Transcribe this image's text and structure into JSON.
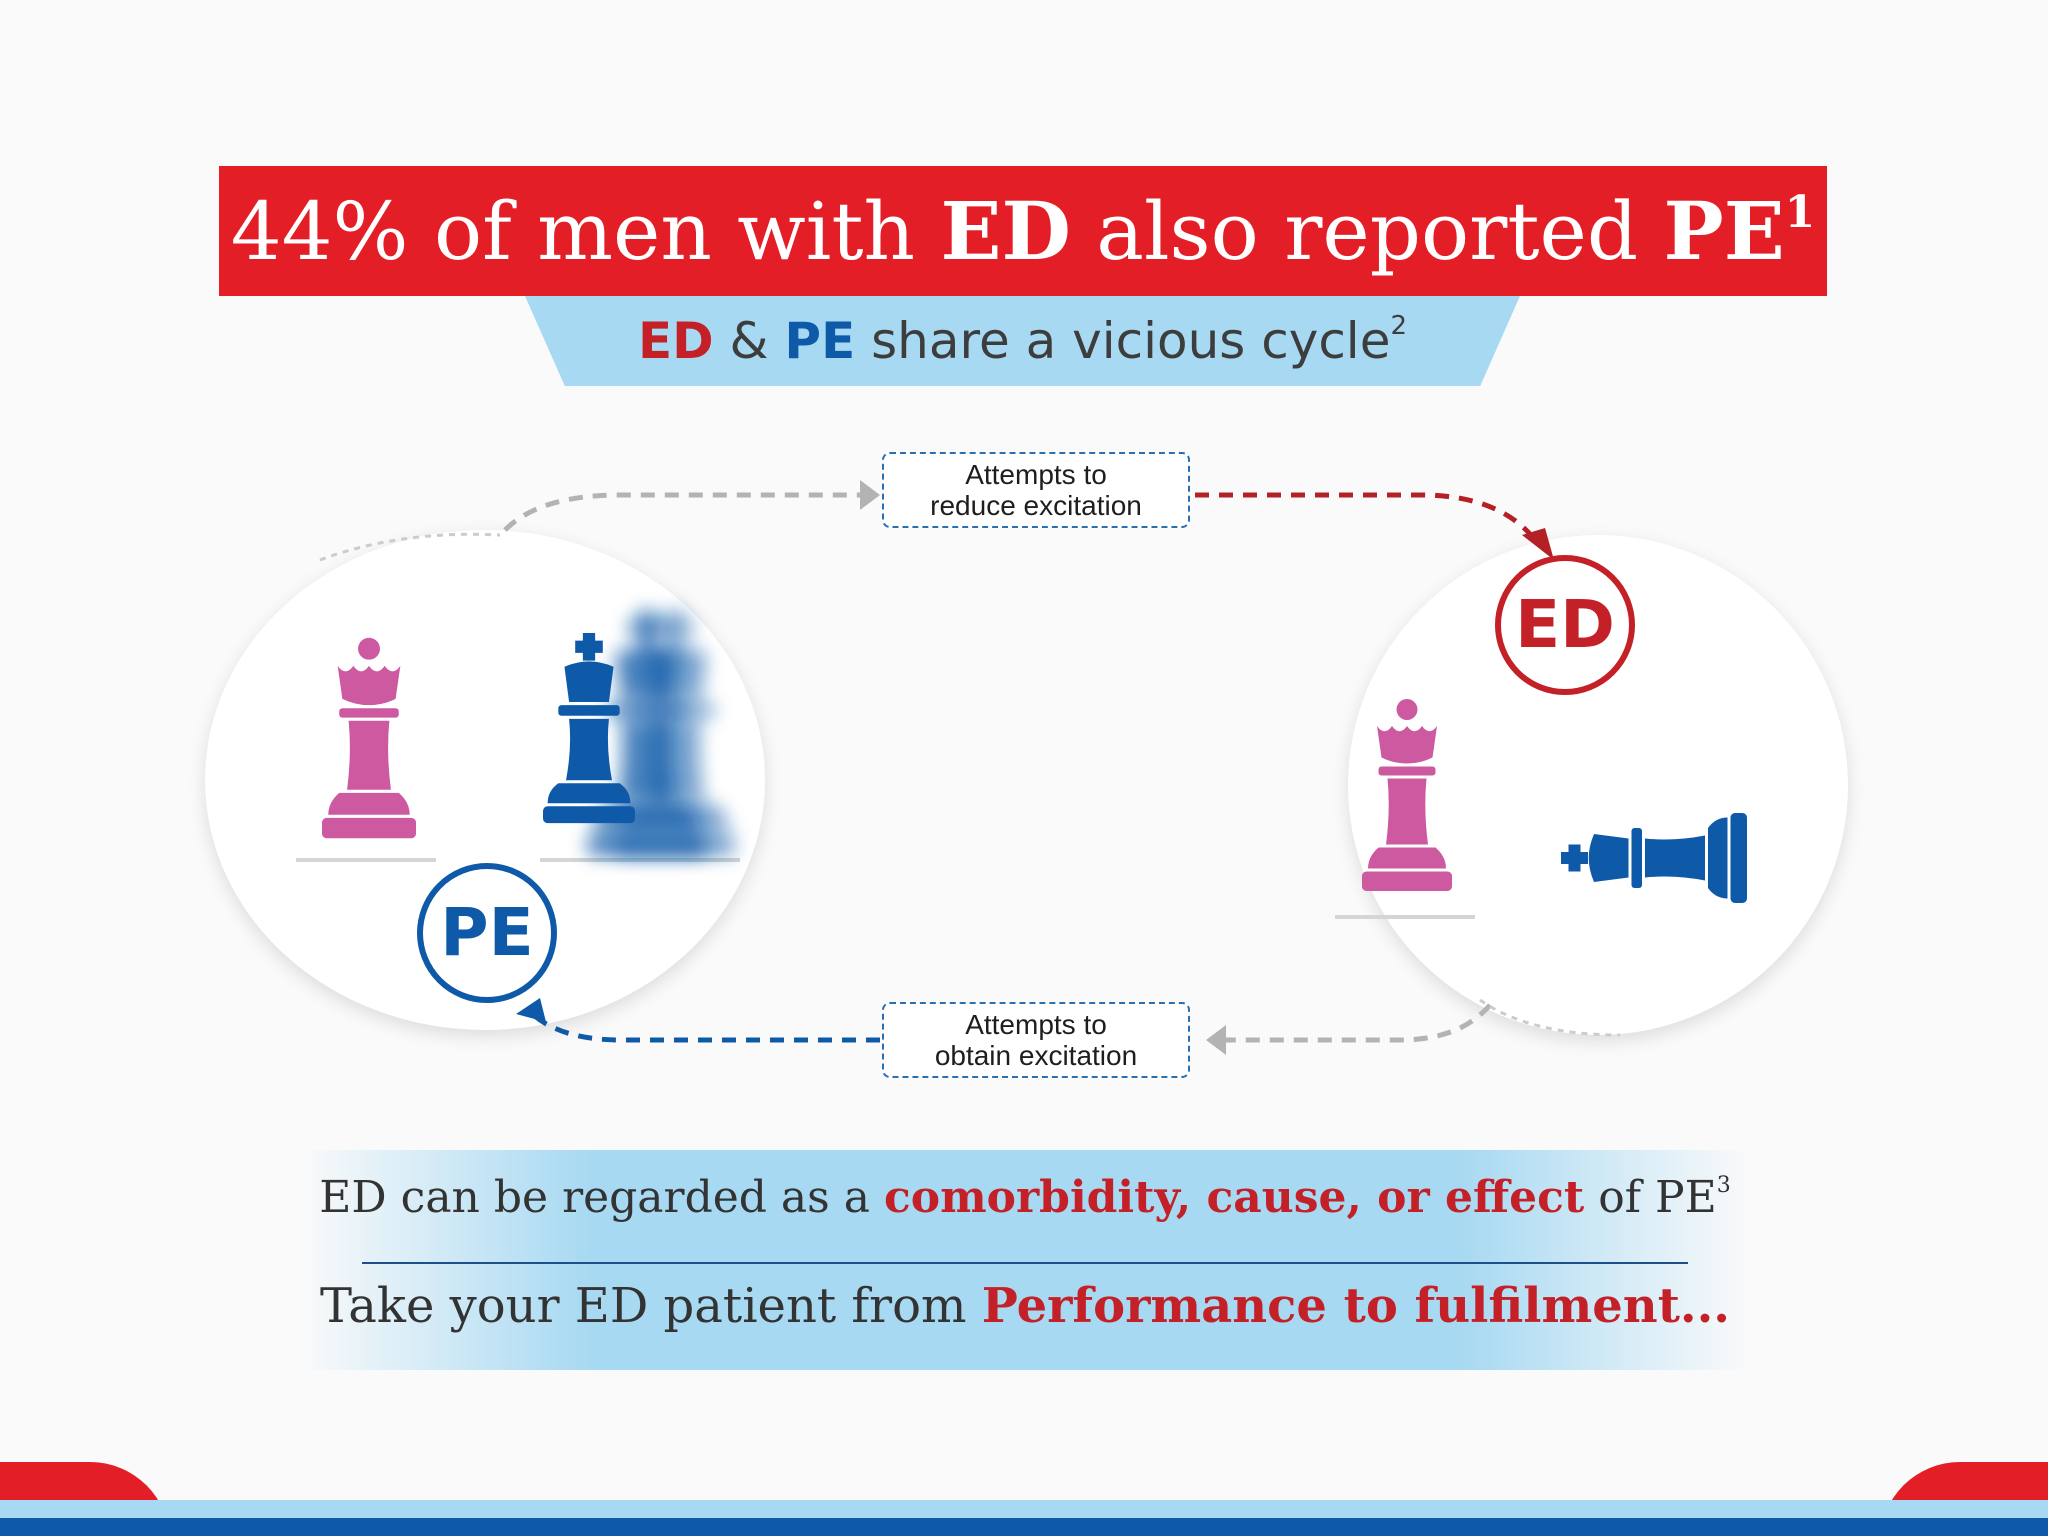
{
  "header": {
    "pre": "44% of men with ",
    "ed": "ED",
    "mid": " also reported ",
    "pe": "PE",
    "ref": "1"
  },
  "subheader": {
    "ed": "ED",
    "amp": " & ",
    "pe": "PE",
    "text": " share a vicious cycle",
    "ref": "2"
  },
  "cycle": {
    "top_label": [
      "Attempts to",
      "reduce excitation"
    ],
    "bottom_label": [
      "Attempts to",
      "obtain excitation"
    ],
    "badge_ed": "ED",
    "badge_pe": "PE"
  },
  "info": {
    "line1_pre": "ED can be regarded as a ",
    "line1_highlight": "comorbidity, cause, or effect",
    "line1_post": " of PE",
    "line1_ref": "3",
    "line2_pre": "Take your ED patient from ",
    "line2_highlight": "Performance to fulfilment..."
  },
  "colors": {
    "brand_red": "#e31e26",
    "dark_red": "#c32127",
    "brand_blue": "#0f5aa8",
    "light_blue": "#a7d9f2",
    "queen_pink": "#cd5aa0"
  },
  "icons": [
    "queen-piece-icon",
    "king-piece-icon",
    "toppled-king-icon"
  ]
}
